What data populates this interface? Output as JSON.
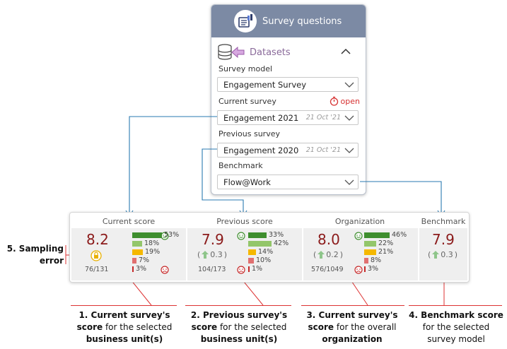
{
  "panel": {
    "title": "Survey questions",
    "datasets_label": "Datasets",
    "survey_model": {
      "label": "Survey model",
      "value": "Engagement Survey"
    },
    "current_survey": {
      "label": "Current survey",
      "status": "open",
      "value": "Engagement 2021",
      "date": "21 Oct '21"
    },
    "previous_survey": {
      "label": "Previous survey",
      "value": "Engagement 2020",
      "date": "21 Oct '21"
    },
    "benchmark": {
      "label": "Benchmark",
      "value": "Flow@Work"
    }
  },
  "scores": {
    "current": {
      "title": "Current score",
      "score": "8.2",
      "count": "76/131",
      "pcts": [
        "53%",
        "18%",
        "19%",
        "7%",
        "3%"
      ],
      "fractions": [
        0.53,
        0.18,
        0.19,
        0.07,
        0.03
      ]
    },
    "previous": {
      "title": "Previous score",
      "score": "7.9",
      "delta": "0.3",
      "count": "104/173",
      "pcts": [
        "33%",
        "42%",
        "14%",
        "10%",
        "1%"
      ],
      "fractions": [
        0.33,
        0.42,
        0.14,
        0.1,
        0.01
      ]
    },
    "organization": {
      "title": "Organization",
      "score": "8.0",
      "delta": "0.2",
      "count": "576/1049",
      "pcts": [
        "46%",
        "22%",
        "21%",
        "8%",
        "3%"
      ],
      "fractions": [
        0.46,
        0.22,
        0.21,
        0.08,
        0.03
      ]
    },
    "benchmark": {
      "title": "Benchmark",
      "score": "7.9",
      "delta": "0.3"
    }
  },
  "bar_colors": [
    "#3e8e2e",
    "#93c66a",
    "#f5b800",
    "#e07070",
    "#c62828"
  ],
  "annotations": {
    "sampling": {
      "line1": "5. Sampling",
      "line2": "error"
    },
    "n1": {
      "bold1": "1. Current survey's",
      "bold2": "score",
      "rest2": " for the selected",
      "bold3": "business unit(s)"
    },
    "n2": {
      "bold1": "2. Previous survey's",
      "bold2": "score",
      "rest2": " for the selected",
      "bold3": "business unit(s)"
    },
    "n3": {
      "bold1": "3. Current survey's",
      "bold2": "score",
      "rest2": " for the overall",
      "bold3": "organization"
    },
    "n4": {
      "bold1": "4. Benchmark score",
      "line2": "for the selected",
      "line3": "survey model"
    }
  }
}
